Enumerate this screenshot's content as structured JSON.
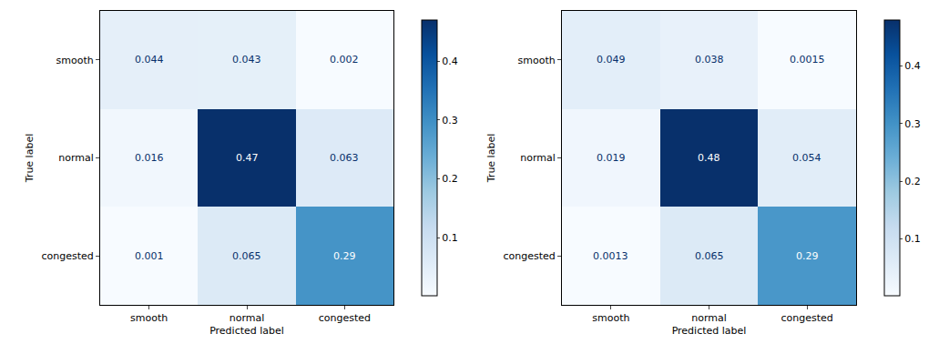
{
  "chart_data": [
    {
      "type": "heatmap",
      "x_label": "Predicted label",
      "y_label": "True label",
      "x_categories": [
        "smooth",
        "normal",
        "congested"
      ],
      "y_categories": [
        "smooth",
        "normal",
        "congested"
      ],
      "cells": [
        [
          0.044,
          0.043,
          0.002
        ],
        [
          0.016,
          0.47,
          0.063
        ],
        [
          0.001,
          0.065,
          0.29
        ]
      ],
      "colorbar_range": [
        0.001,
        0.47
      ],
      "colorbar_ticks": [
        0.1,
        0.2,
        0.3,
        0.4
      ],
      "data_labels": true
    },
    {
      "type": "heatmap",
      "x_label": "Predicted label",
      "y_label": "True label",
      "x_categories": [
        "smooth",
        "normal",
        "congested"
      ],
      "y_categories": [
        "smooth",
        "normal",
        "congested"
      ],
      "cells": [
        [
          0.049,
          0.038,
          0.0015
        ],
        [
          0.019,
          0.48,
          0.054
        ],
        [
          0.0013,
          0.065,
          0.29
        ]
      ],
      "colorbar_range": [
        0.0013,
        0.48
      ],
      "colorbar_ticks": [
        0.1,
        0.2,
        0.3,
        0.4
      ],
      "data_labels": true
    }
  ]
}
